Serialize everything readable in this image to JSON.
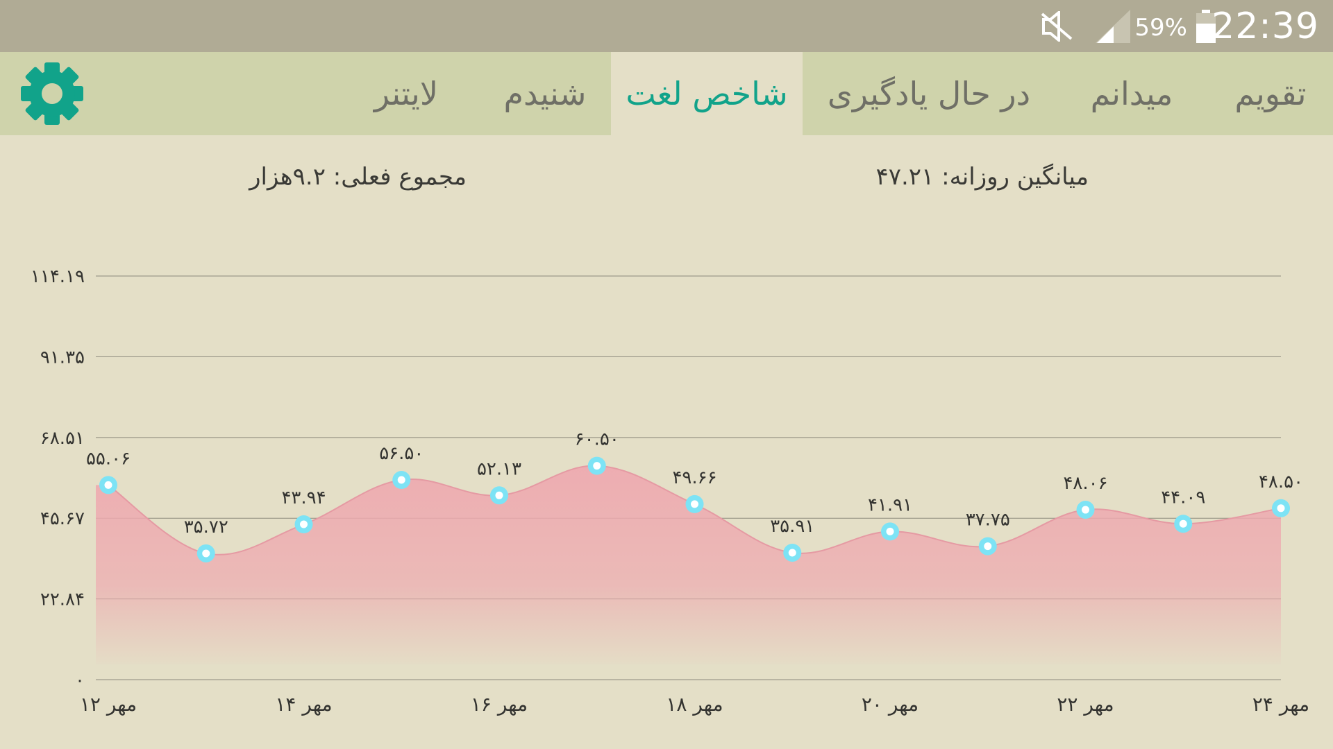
{
  "status_bar": {
    "time": "22:39",
    "battery": "59%",
    "icons": [
      "mute-icon",
      "signal-icon",
      "battery-icon"
    ]
  },
  "tabs": [
    {
      "label": "تقویم",
      "active": false
    },
    {
      "label": "میدانم",
      "active": false
    },
    {
      "label": "در حال یادگیری",
      "active": false
    },
    {
      "label": "شاخص لغت",
      "active": true
    },
    {
      "label": "شنیدم",
      "active": false
    },
    {
      "label": "لایتنر",
      "active": false
    }
  ],
  "settings_icon": "gear-icon",
  "summary": {
    "daily_average": "میانگین روزانه: ۴۷.۲۱",
    "current_total": "مجموع فعلی: ۹.۲هزار"
  },
  "colors": {
    "accent": "#11a38a",
    "tabbar": "#cfd3ab",
    "background": "#e4dfc7",
    "area_fill": "#eeaab0",
    "point": "#7de3f5"
  },
  "chart_data": {
    "type": "area",
    "ylim": [
      0,
      114.19
    ],
    "y_ticks": [
      {
        "value": 0,
        "label": "۰"
      },
      {
        "value": 22.84,
        "label": "۲۲.۸۴"
      },
      {
        "value": 45.67,
        "label": "۴۵.۶۷"
      },
      {
        "value": 68.51,
        "label": "۶۸.۵۱"
      },
      {
        "value": 91.35,
        "label": "۹۱.۳۵"
      },
      {
        "value": 114.19,
        "label": "۱۱۴.۱۹"
      }
    ],
    "x": [
      12,
      13,
      14,
      15,
      16,
      17,
      18,
      19,
      20,
      21,
      22,
      23,
      24
    ],
    "x_ticks": [
      {
        "x": 12,
        "label": "۱۲ مهر"
      },
      {
        "x": 14,
        "label": "۱۴ مهر"
      },
      {
        "x": 16,
        "label": "۱۶ مهر"
      },
      {
        "x": 18,
        "label": "۱۸ مهر"
      },
      {
        "x": 20,
        "label": "۲۰ مهر"
      },
      {
        "x": 22,
        "label": "۲۲ مهر"
      },
      {
        "x": 24,
        "label": "۲۴ مهر"
      }
    ],
    "values": [
      55.06,
      35.72,
      43.94,
      56.5,
      52.13,
      60.5,
      49.66,
      35.91,
      41.91,
      37.75,
      48.06,
      44.09,
      48.5
    ],
    "value_labels": [
      "۵۵.۰۶",
      "۳۵.۷۲",
      "۴۳.۹۴",
      "۵۶.۵۰",
      "۵۲.۱۳",
      "۶۰.۵۰",
      "۴۹.۶۶",
      "۳۵.۹۱",
      "۴۱.۹۱",
      "۳۷.۷۵",
      "۴۸.۰۶",
      "۴۴.۰۹",
      "۴۸.۵۰"
    ],
    "grid": true,
    "legend": "none"
  }
}
